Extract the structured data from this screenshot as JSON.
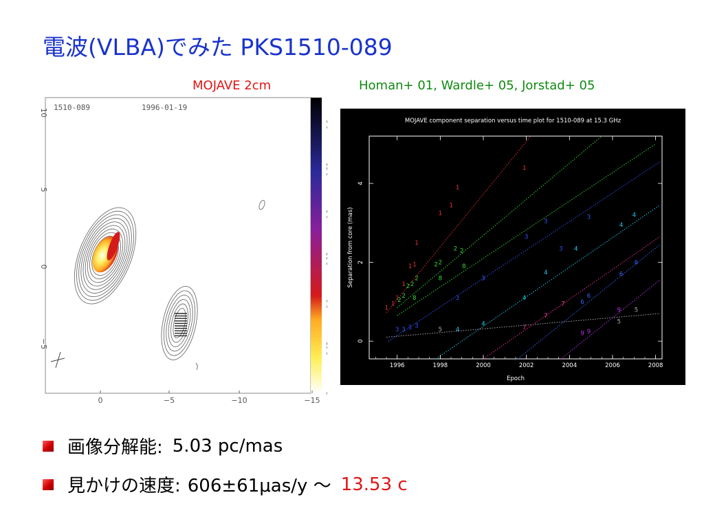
{
  "title": "電波(VLBA)でみた PKS1510-089",
  "captions": {
    "left": "MOJAVE 2cm",
    "right": "Homan+ 01, Wardle+ 05, Jorstad+ 05"
  },
  "bullets": [
    {
      "label": "画像分解能:",
      "value": "5.03 pc/mas"
    },
    {
      "label": "見かけの速度:",
      "value": "606±61μas/y ～",
      "highlight": "13.53 c"
    }
  ],
  "chart_data": [
    {
      "type": "heatmap",
      "source_label": "1510-089",
      "date_label": "1996-01-19",
      "x_ticks": [
        "0",
        "−5",
        "−10",
        "−15"
      ],
      "y_ticks": [
        "10",
        "5",
        "0",
        "−5"
      ],
      "colorbar_ticks": [
        "0",
        "0.05",
        "0.1",
        "0.15",
        "0.2",
        "0.25",
        "0.3"
      ],
      "colorbar_range": [
        0,
        0.33
      ],
      "colors": {
        "contour": "#6e6e6e",
        "cmap_low": "#ffffff",
        "cmap_mid": "#d41a1a",
        "cmap_high": "#000000"
      }
    },
    {
      "type": "scatter",
      "title": "MOJAVE component separation versus time plot for 1510-089 at 15.3 GHz",
      "xlabel": "Epoch",
      "ylabel": "Separation from core (mas)",
      "xlim": [
        1994.7,
        2008.3
      ],
      "ylim": [
        -0.45,
        5.2
      ],
      "x_ticks": [
        1996,
        1998,
        2000,
        2002,
        2004,
        2006,
        2008
      ],
      "y_ticks": [
        0,
        2,
        4
      ],
      "series": [
        {
          "marker": "1",
          "color": "#e83030",
          "x": [
            1995.5,
            1995.8,
            1996.0,
            1996.3,
            1996.6,
            1996.8,
            1996.9,
            1998.0,
            1998.5,
            1998.8,
            2001.9
          ],
          "y": [
            0.85,
            0.95,
            1.1,
            1.45,
            1.9,
            1.95,
            2.5,
            3.25,
            3.45,
            3.9,
            4.4
          ],
          "fit": [
            [
              1995.5,
              0.72
            ],
            [
              2002.2,
              5.2
            ]
          ]
        },
        {
          "marker": "2",
          "color": "#33dd33",
          "x": [
            1996.1,
            1996.3,
            1996.5,
            1996.7,
            1996.9,
            1997.8,
            1998.0,
            1998.7,
            1999.0
          ],
          "y": [
            1.05,
            1.15,
            1.4,
            1.45,
            1.6,
            1.95,
            2.0,
            2.35,
            2.3
          ],
          "fit": [
            [
              1996.0,
              0.85
            ],
            [
              2005.5,
              5.2
            ]
          ]
        },
        {
          "marker": "8",
          "color": "#33dd33",
          "x": [
            1996.8,
            1998.0,
            1999.1
          ],
          "y": [
            1.1,
            1.6,
            1.9
          ],
          "fit": [
            [
              1996.0,
              0.65
            ],
            [
              2008.0,
              5.0
            ]
          ]
        },
        {
          "marker": "3",
          "color": "#3355ff",
          "x": [
            1996.0,
            1996.3,
            1996.6,
            1996.9,
            1998.8,
            2000.0,
            2002.0,
            2002.9,
            2003.6,
            2004.9
          ],
          "y": [
            0.3,
            0.3,
            0.35,
            0.4,
            1.1,
            1.6,
            2.65,
            3.05,
            2.35,
            3.15
          ],
          "fit": [
            [
              1995.6,
              0.0
            ],
            [
              2008.2,
              4.55
            ]
          ]
        },
        {
          "marker": "4",
          "color": "#22ccee",
          "x": [
            1998.8,
            2000.0,
            2001.9,
            2002.9,
            2004.3,
            2006.4,
            2007.0
          ],
          "y": [
            0.3,
            0.45,
            1.1,
            1.75,
            2.35,
            2.95,
            3.2
          ],
          "fit": [
            [
              1997.8,
              -0.45
            ],
            [
              2008.2,
              3.45
            ]
          ]
        },
        {
          "marker": "5",
          "color": "#aaaaaa",
          "x": [
            1998.0,
            2006.3,
            2007.1
          ],
          "y": [
            0.3,
            0.5,
            0.8
          ],
          "fit": [
            [
              1995.5,
              0.1
            ],
            [
              2008.2,
              0.7
            ]
          ]
        },
        {
          "marker": "6",
          "color": "#3366ff",
          "x": [
            2004.6,
            2004.9,
            2006.4,
            2007.1
          ],
          "y": [
            1.0,
            1.15,
            1.7,
            2.0
          ],
          "fit": [
            [
              2001.6,
              -0.45
            ],
            [
              2008.2,
              2.45
            ]
          ]
        },
        {
          "marker": "7",
          "color": "#ee3399",
          "x": [
            2001.9,
            2002.9,
            2003.7
          ],
          "y": [
            0.35,
            0.65,
            0.95
          ],
          "fit": [
            [
              2000.0,
              -0.45
            ],
            [
              2008.2,
              2.65
            ]
          ]
        },
        {
          "marker": "9",
          "color": "#bb33ee",
          "x": [
            2004.6,
            2004.9,
            2006.3
          ],
          "y": [
            0.2,
            0.25,
            0.8
          ],
          "fit": [
            [
              2003.6,
              -0.45
            ],
            [
              2008.2,
              1.55
            ]
          ]
        }
      ]
    }
  ]
}
